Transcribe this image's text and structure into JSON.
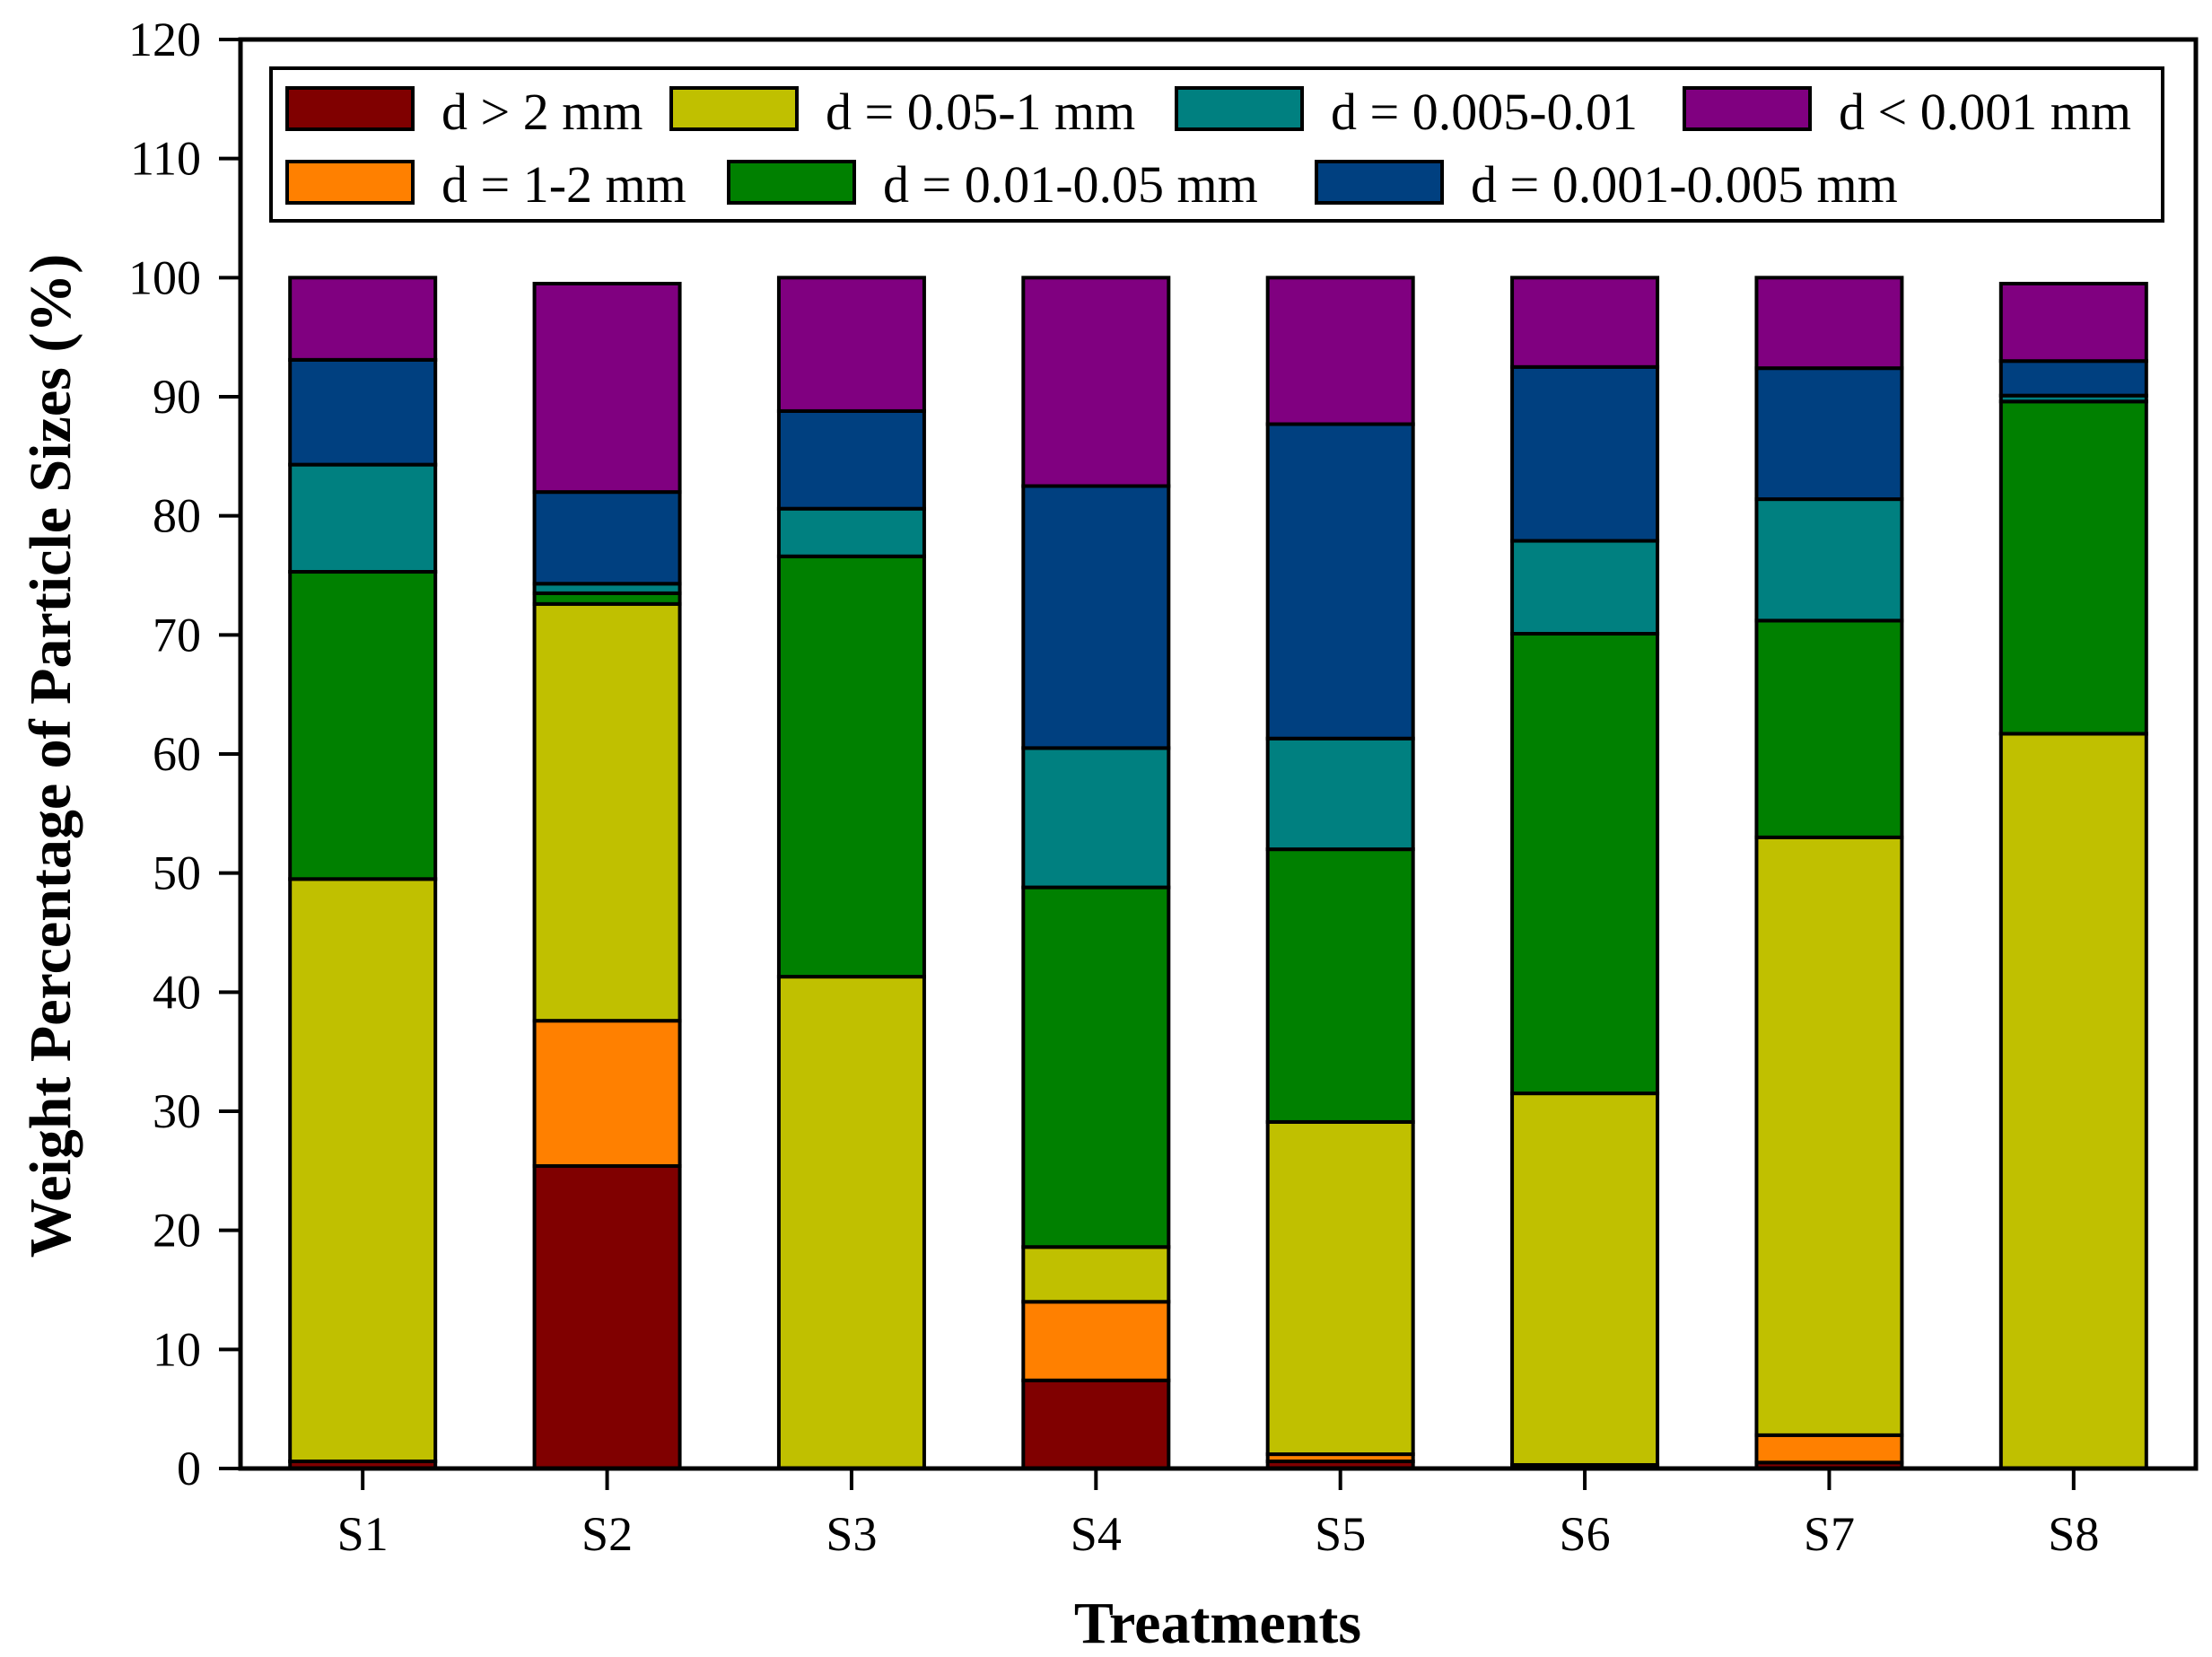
{
  "chart_data": {
    "type": "bar",
    "stacked": true,
    "title": "",
    "xlabel": "Treatments",
    "ylabel": "Weight Percentage of Particle Sizes (%)",
    "ylim": [
      0,
      120
    ],
    "yticks": [
      0,
      10,
      20,
      30,
      40,
      50,
      60,
      70,
      80,
      90,
      100,
      110,
      120
    ],
    "grid": false,
    "legend_position": "top",
    "categories": [
      "S1",
      "S2",
      "S3",
      "S4",
      "S5",
      "S6",
      "S7",
      "S8"
    ],
    "series": [
      {
        "name": "d > 2 mm",
        "color": "#800000",
        "values": [
          0.6,
          25.4,
          0.0,
          7.4,
          0.6,
          0.3,
          0.5,
          0.0
        ]
      },
      {
        "name": "d = 1-2 mm",
        "color": "#ff8000",
        "values": [
          0.0,
          12.2,
          0.0,
          6.6,
          0.6,
          0.0,
          2.3,
          0.0
        ]
      },
      {
        "name": "d = 0.05-1 mm",
        "color": "#c0c000",
        "values": [
          48.9,
          35.0,
          41.3,
          4.6,
          27.9,
          31.2,
          50.2,
          61.7
        ]
      },
      {
        "name": "d = 0.01-0.05 mm",
        "color": "#008000",
        "values": [
          25.8,
          0.9,
          35.3,
          30.2,
          22.9,
          38.6,
          18.2,
          27.9
        ]
      },
      {
        "name": "d = 0.005-0.01",
        "color": "#008080",
        "values": [
          9.0,
          0.8,
          4.0,
          11.7,
          9.3,
          7.8,
          10.2,
          0.5
        ]
      },
      {
        "name": "d = 0.001-0.005 mm",
        "color": "#004080",
        "values": [
          8.8,
          7.7,
          8.2,
          22.0,
          26.4,
          14.6,
          11.0,
          2.9
        ]
      },
      {
        "name": "d < 0.001 mm",
        "color": "#800080",
        "values": [
          6.9,
          17.5,
          11.2,
          17.5,
          12.3,
          7.5,
          7.6,
          6.5
        ]
      }
    ]
  }
}
